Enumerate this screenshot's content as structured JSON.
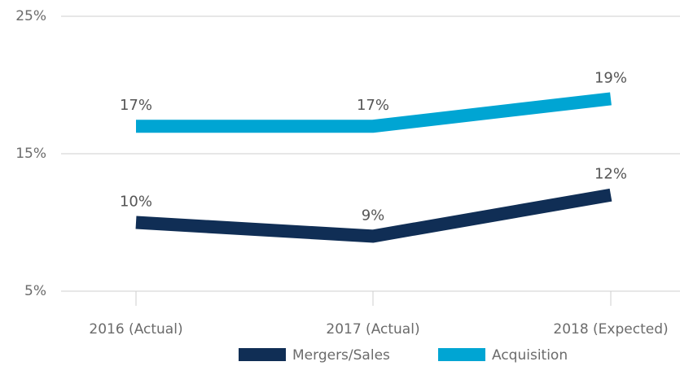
{
  "chart_data": {
    "type": "line",
    "categories": [
      "2016 (Actual)",
      "2017 (Actual)",
      "2018 (Expected)"
    ],
    "series": [
      {
        "name": "Mergers/Sales",
        "color": "#102e55",
        "values": [
          10,
          9,
          12
        ],
        "value_labels": [
          "10%",
          "9%",
          "12%"
        ]
      },
      {
        "name": "Acquisition",
        "color": "#00a5d3",
        "values": [
          17,
          17,
          19
        ],
        "value_labels": [
          "17%",
          "17%",
          "19%"
        ]
      }
    ],
    "ylim": [
      5,
      25
    ],
    "yticks": [
      {
        "value": 5,
        "label": "5%"
      },
      {
        "value": 15,
        "label": "15%"
      },
      {
        "value": 25,
        "label": "25%"
      }
    ],
    "grid": true
  }
}
